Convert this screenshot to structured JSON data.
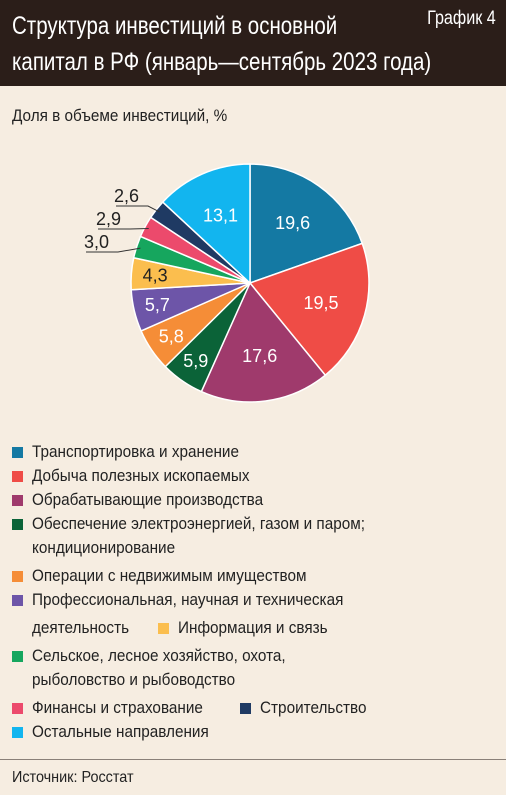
{
  "header": {
    "title_line1": "Структура инвестиций в основной",
    "title_line2": "капитал в РФ (январь—сентябрь 2023 года)",
    "tag": "График 4"
  },
  "subtitle": "Доля в объеме инвестиций, %",
  "source": "Источник: Росстат",
  "chart_data": {
    "type": "pie",
    "title": "Структура инвестиций в основной капитал в РФ (январь—сентябрь 2023 года)",
    "unit_label": "Доля в объеме инвестиций, %",
    "slices": [
      {
        "label": "Транспортировка и хранение",
        "value": 19.6,
        "display": "19,6",
        "color": "#1479a3"
      },
      {
        "label": "Добыча полезных ископаемых",
        "value": 19.5,
        "display": "19,5",
        "color": "#ef4c46"
      },
      {
        "label": "Обрабатывающие производства",
        "value": 17.6,
        "display": "17,6",
        "color": "#9f3a6c"
      },
      {
        "label": "Обеспечение электроэнергией, газом и паром; кондиционирование",
        "value": 5.9,
        "display": "5,9",
        "color": "#0b6338"
      },
      {
        "label": "Операции с недвижимым имуществом",
        "value": 5.8,
        "display": "5,8",
        "color": "#f58d37"
      },
      {
        "label": "Профессиональная, научная и техническая деятельность",
        "value": 5.7,
        "display": "5,7",
        "color": "#6d55a8"
      },
      {
        "label": "Информация и связь",
        "value": 4.3,
        "display": "4,3",
        "color": "#fbbe4e"
      },
      {
        "label": "Сельское, лесное хозяйство, охота, рыболовство и рыбоводство",
        "value": 3.0,
        "display": "3,0",
        "color": "#16a65e"
      },
      {
        "label": "Финансы и страхование",
        "value": 2.9,
        "display": "2,9",
        "color": "#ec4a6c"
      },
      {
        "label": "Строительство",
        "value": 2.6,
        "display": "2,6",
        "color": "#1f3a63"
      },
      {
        "label": "Остальные направления",
        "value": 13.1,
        "display": "13,1",
        "color": "#12b5ef"
      }
    ]
  },
  "legend_lines": [
    {
      "parts": [
        {
          "text": "Транспортировка и хранение",
          "color": "#1479a3"
        }
      ]
    },
    {
      "parts": [
        {
          "text": "Добыча полезных ископаемых",
          "color": "#ef4c46"
        }
      ]
    },
    {
      "parts": [
        {
          "text": "Обрабатывающие производства",
          "color": "#9f3a6c"
        }
      ]
    },
    {
      "parts": [
        {
          "text": "Обеспечение электроэнергией, газом и паром;",
          "color": "#0b6338"
        }
      ]
    },
    {
      "cont": "кондиционирование"
    },
    {
      "parts": [
        {
          "text": "Операции с недвижимым имуществом",
          "color": "#f58d37"
        }
      ]
    },
    {
      "parts": [
        {
          "text": "Профессиональная, научная и техническая",
          "color": "#6d55a8"
        }
      ]
    },
    {
      "cont": "деятельность",
      "parts": [
        {
          "text": "Информация и связь",
          "color": "#fbbe4e"
        }
      ]
    },
    {
      "parts": [
        {
          "text": "Сельское, лесное хозяйство, охота,",
          "color": "#16a65e"
        }
      ]
    },
    {
      "cont": "рыболовство и рыбоводство"
    },
    {
      "parts": [
        {
          "text": "Финансы и страхование",
          "color": "#ec4a6c"
        },
        {
          "text": "Строительство",
          "color": "#1f3a63"
        }
      ]
    },
    {
      "parts": [
        {
          "text": "Остальные направления",
          "color": "#12b5ef"
        }
      ]
    }
  ]
}
